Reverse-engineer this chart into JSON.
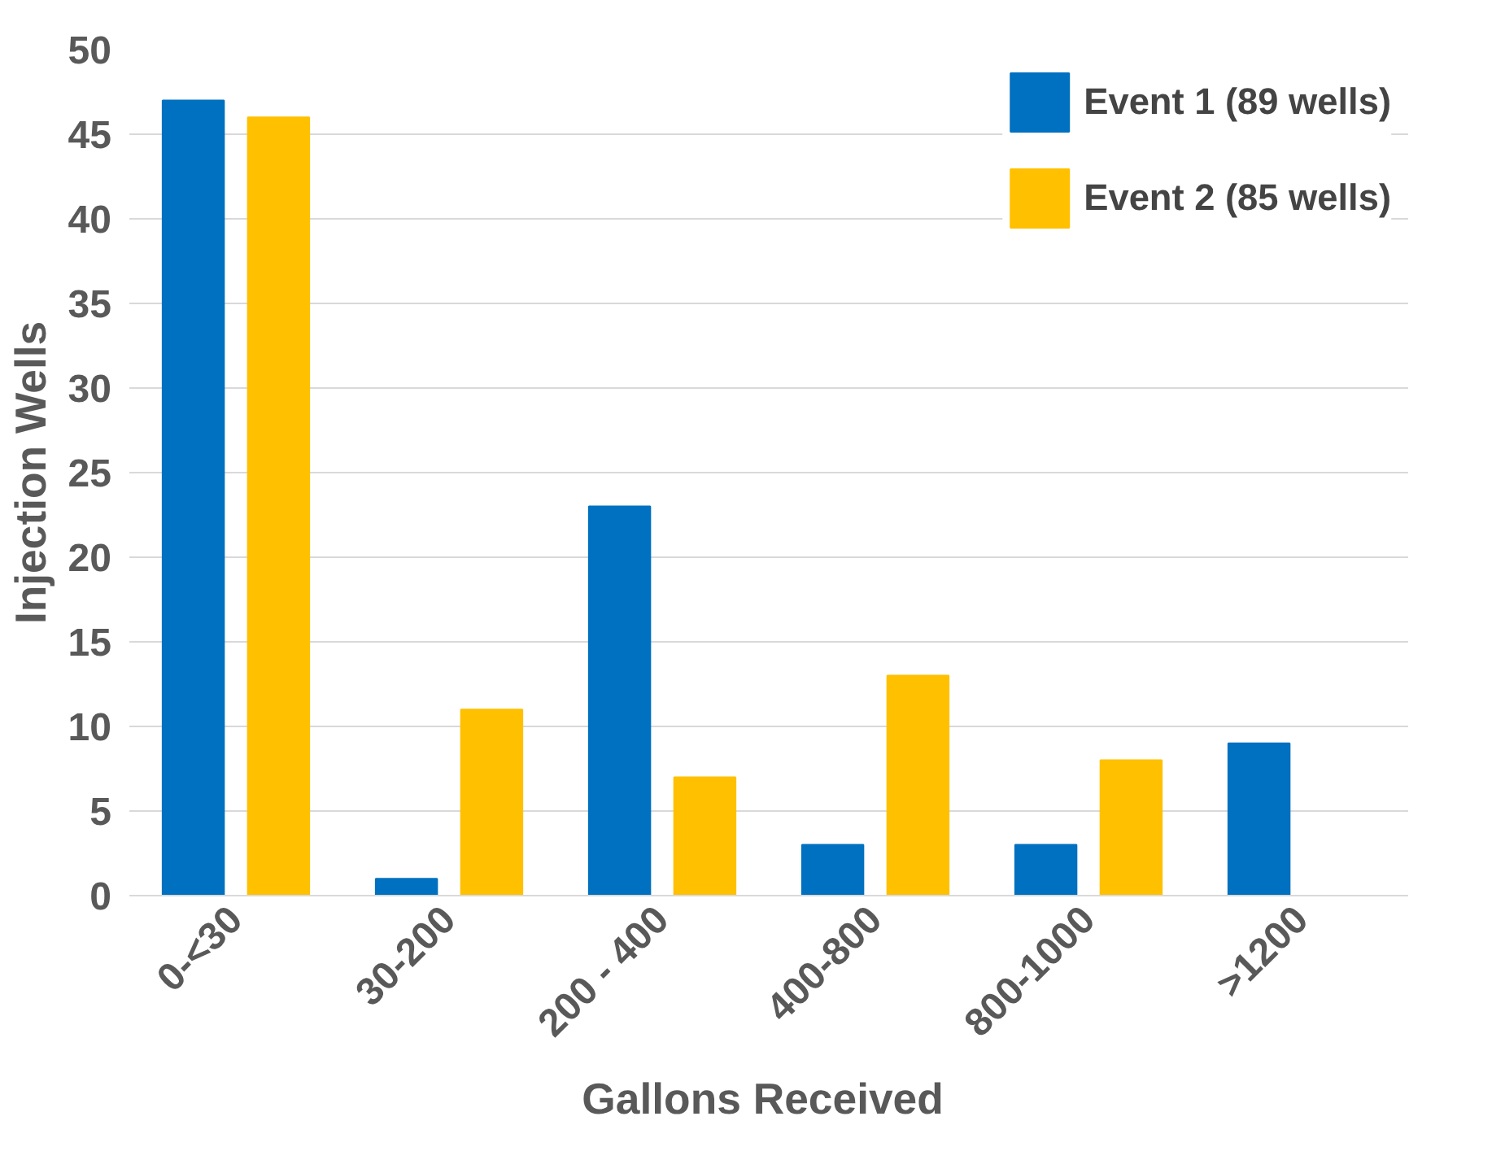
{
  "chart_data": {
    "type": "bar",
    "xlabel": "Gallons  Received",
    "ylabel": "Injection Wells",
    "categories": [
      "0-<30",
      "30-200",
      "200 - 400",
      "400-800",
      "800-1000",
      ">1200"
    ],
    "series": [
      {
        "name": "Event 1 (89 wells)",
        "color": "#0070c0",
        "values": [
          47,
          1,
          23,
          3,
          3,
          9
        ]
      },
      {
        "name": "Event 2 (85 wells)",
        "color": "#ffc000",
        "values": [
          46,
          11,
          7,
          13,
          8,
          0
        ]
      }
    ],
    "ylim": [
      0,
      50
    ],
    "yticks": [
      0,
      5,
      10,
      15,
      20,
      25,
      30,
      35,
      40,
      45,
      50
    ],
    "grid": "y",
    "legend": "top right"
  }
}
